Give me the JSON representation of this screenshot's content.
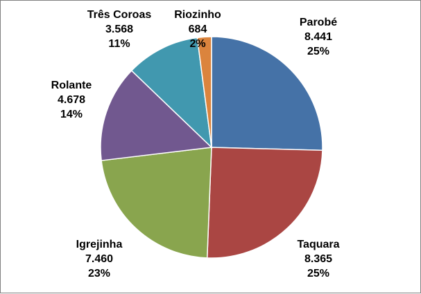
{
  "chart_data": {
    "type": "pie",
    "title": "",
    "start_angle_deg": 0,
    "direction": "clockwise",
    "legend": "none",
    "slices": [
      {
        "label": "Parobé",
        "value_text": "8.441",
        "value": 8441,
        "percent_text": "25%",
        "color": "#4572A7"
      },
      {
        "label": "Taquara",
        "value_text": "8.365",
        "value": 8365,
        "percent_text": "25%",
        "color": "#AA4643"
      },
      {
        "label": "Igrejinha",
        "value_text": "7.460",
        "value": 7460,
        "percent_text": "23%",
        "color": "#89A54E"
      },
      {
        "label": "Rolante",
        "value_text": "4.678",
        "value": 4678,
        "percent_text": "14%",
        "color": "#71588F"
      },
      {
        "label": "Três Coroas",
        "value_text": "3.568",
        "value": 3568,
        "percent_text": "11%",
        "color": "#4198AF"
      },
      {
        "label": "Riozinho",
        "value_text": "684",
        "value": 684,
        "percent_text": "2%",
        "color": "#DB843D"
      }
    ]
  }
}
